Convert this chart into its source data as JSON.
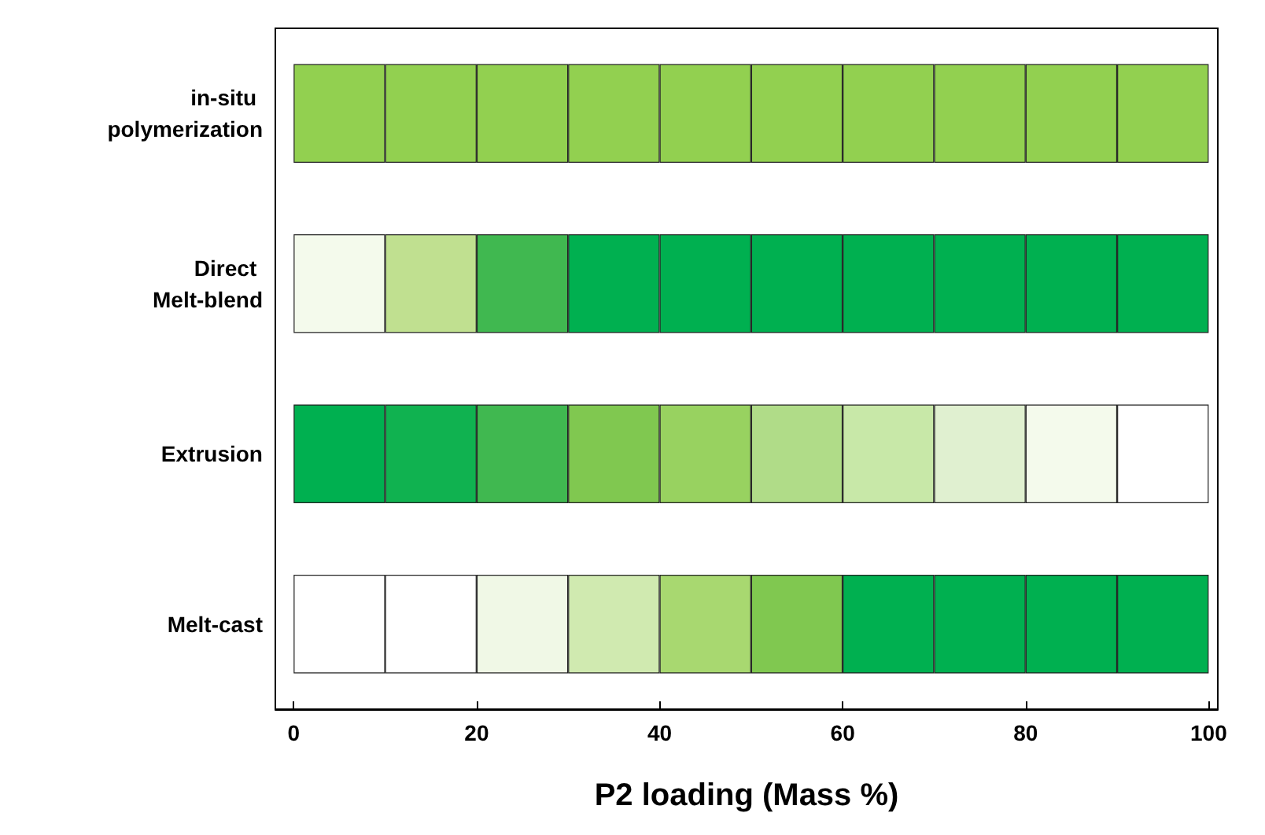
{
  "chart_data": {
    "type": "bar",
    "orientation": "horizontal",
    "stacked": true,
    "xlabel": "P2 loading (Mass %)",
    "categories": [
      "in-situ polymerization",
      "Direct Melt-blend",
      "Extrusion",
      "Melt-cast"
    ],
    "xlim": [
      -2,
      101
    ],
    "xticks": [
      0,
      20,
      40,
      60,
      80,
      100
    ],
    "grid": false,
    "series": [
      {
        "values": [
          10,
          10,
          10,
          10
        ],
        "colors": [
          "#92d050",
          "#f4faec",
          "#00b050",
          "#ffffff"
        ]
      },
      {
        "values": [
          10,
          10,
          10,
          10
        ],
        "colors": [
          "#92d050",
          "#c0e090",
          "#10b250",
          "#ffffff"
        ]
      },
      {
        "values": [
          10,
          10,
          10,
          10
        ],
        "colors": [
          "#92d050",
          "#40b850",
          "#40b850",
          "#f0f8e6"
        ]
      },
      {
        "values": [
          10,
          10,
          10,
          10
        ],
        "colors": [
          "#92d050",
          "#00b050",
          "#80c850",
          "#d0eab0"
        ]
      },
      {
        "values": [
          10,
          10,
          10,
          10
        ],
        "colors": [
          "#92d050",
          "#00b050",
          "#98d260",
          "#a8d870"
        ]
      },
      {
        "values": [
          10,
          10,
          10,
          10
        ],
        "colors": [
          "#92d050",
          "#00b050",
          "#b0dc88",
          "#80c850"
        ]
      },
      {
        "values": [
          10,
          10,
          10,
          10
        ],
        "colors": [
          "#92d050",
          "#00b050",
          "#c8e8a8",
          "#00b050"
        ]
      },
      {
        "values": [
          10,
          10,
          10,
          10
        ],
        "colors": [
          "#92d050",
          "#00b050",
          "#e0f0d0",
          "#00b050"
        ]
      },
      {
        "values": [
          10,
          10,
          10,
          10
        ],
        "colors": [
          "#92d050",
          "#00b050",
          "#f4faec",
          "#00b050"
        ]
      },
      {
        "values": [
          10,
          10,
          10,
          10
        ],
        "colors": [
          "#92d050",
          "#00b050",
          "#ffffff",
          "#00b050"
        ]
      }
    ]
  }
}
